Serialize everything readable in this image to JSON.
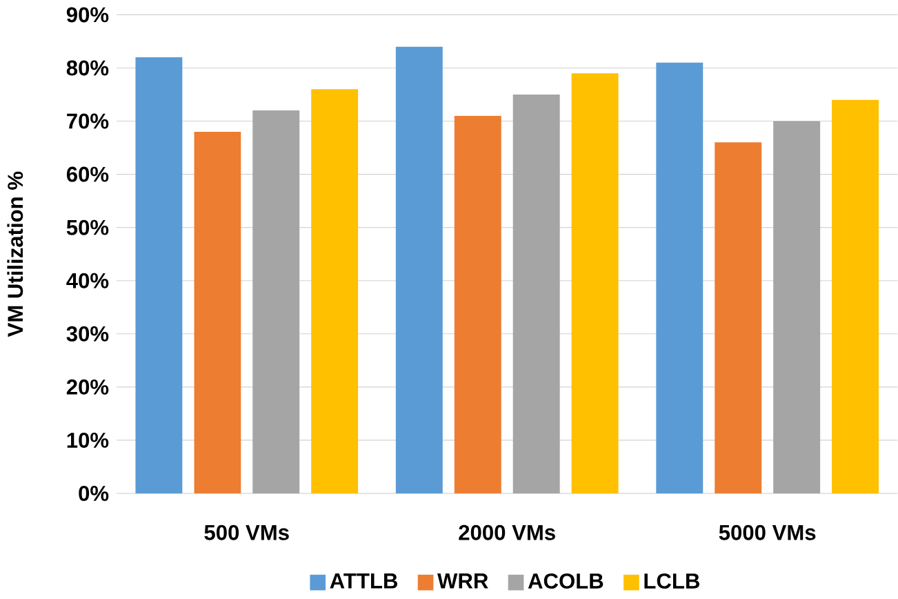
{
  "chart_data": {
    "type": "bar",
    "ylabel": "VM Utilization %",
    "categories": [
      "500 VMs",
      "2000 VMs",
      "5000 VMs"
    ],
    "series": [
      {
        "name": "ATTLB",
        "color": "#5b9bd5",
        "values": [
          82,
          84,
          81
        ]
      },
      {
        "name": "WRR",
        "color": "#ed7d31",
        "values": [
          68,
          71,
          66
        ]
      },
      {
        "name": "ACOLB",
        "color": "#a5a5a5",
        "values": [
          72,
          75,
          70
        ]
      },
      {
        "name": "LCLB",
        "color": "#ffc000",
        "values": [
          76,
          79,
          74
        ]
      }
    ],
    "ylim": [
      0,
      90
    ],
    "yticks": [
      {
        "value": 0,
        "label": "0%"
      },
      {
        "value": 10,
        "label": "10%"
      },
      {
        "value": 20,
        "label": "20%"
      },
      {
        "value": 30,
        "label": "30%"
      },
      {
        "value": 40,
        "label": "40%"
      },
      {
        "value": 50,
        "label": "50%"
      },
      {
        "value": 60,
        "label": "60%"
      },
      {
        "value": 70,
        "label": "70%"
      },
      {
        "value": 80,
        "label": "80%"
      },
      {
        "value": 90,
        "label": "90%"
      }
    ],
    "grid": "y",
    "legend": "bottom"
  }
}
